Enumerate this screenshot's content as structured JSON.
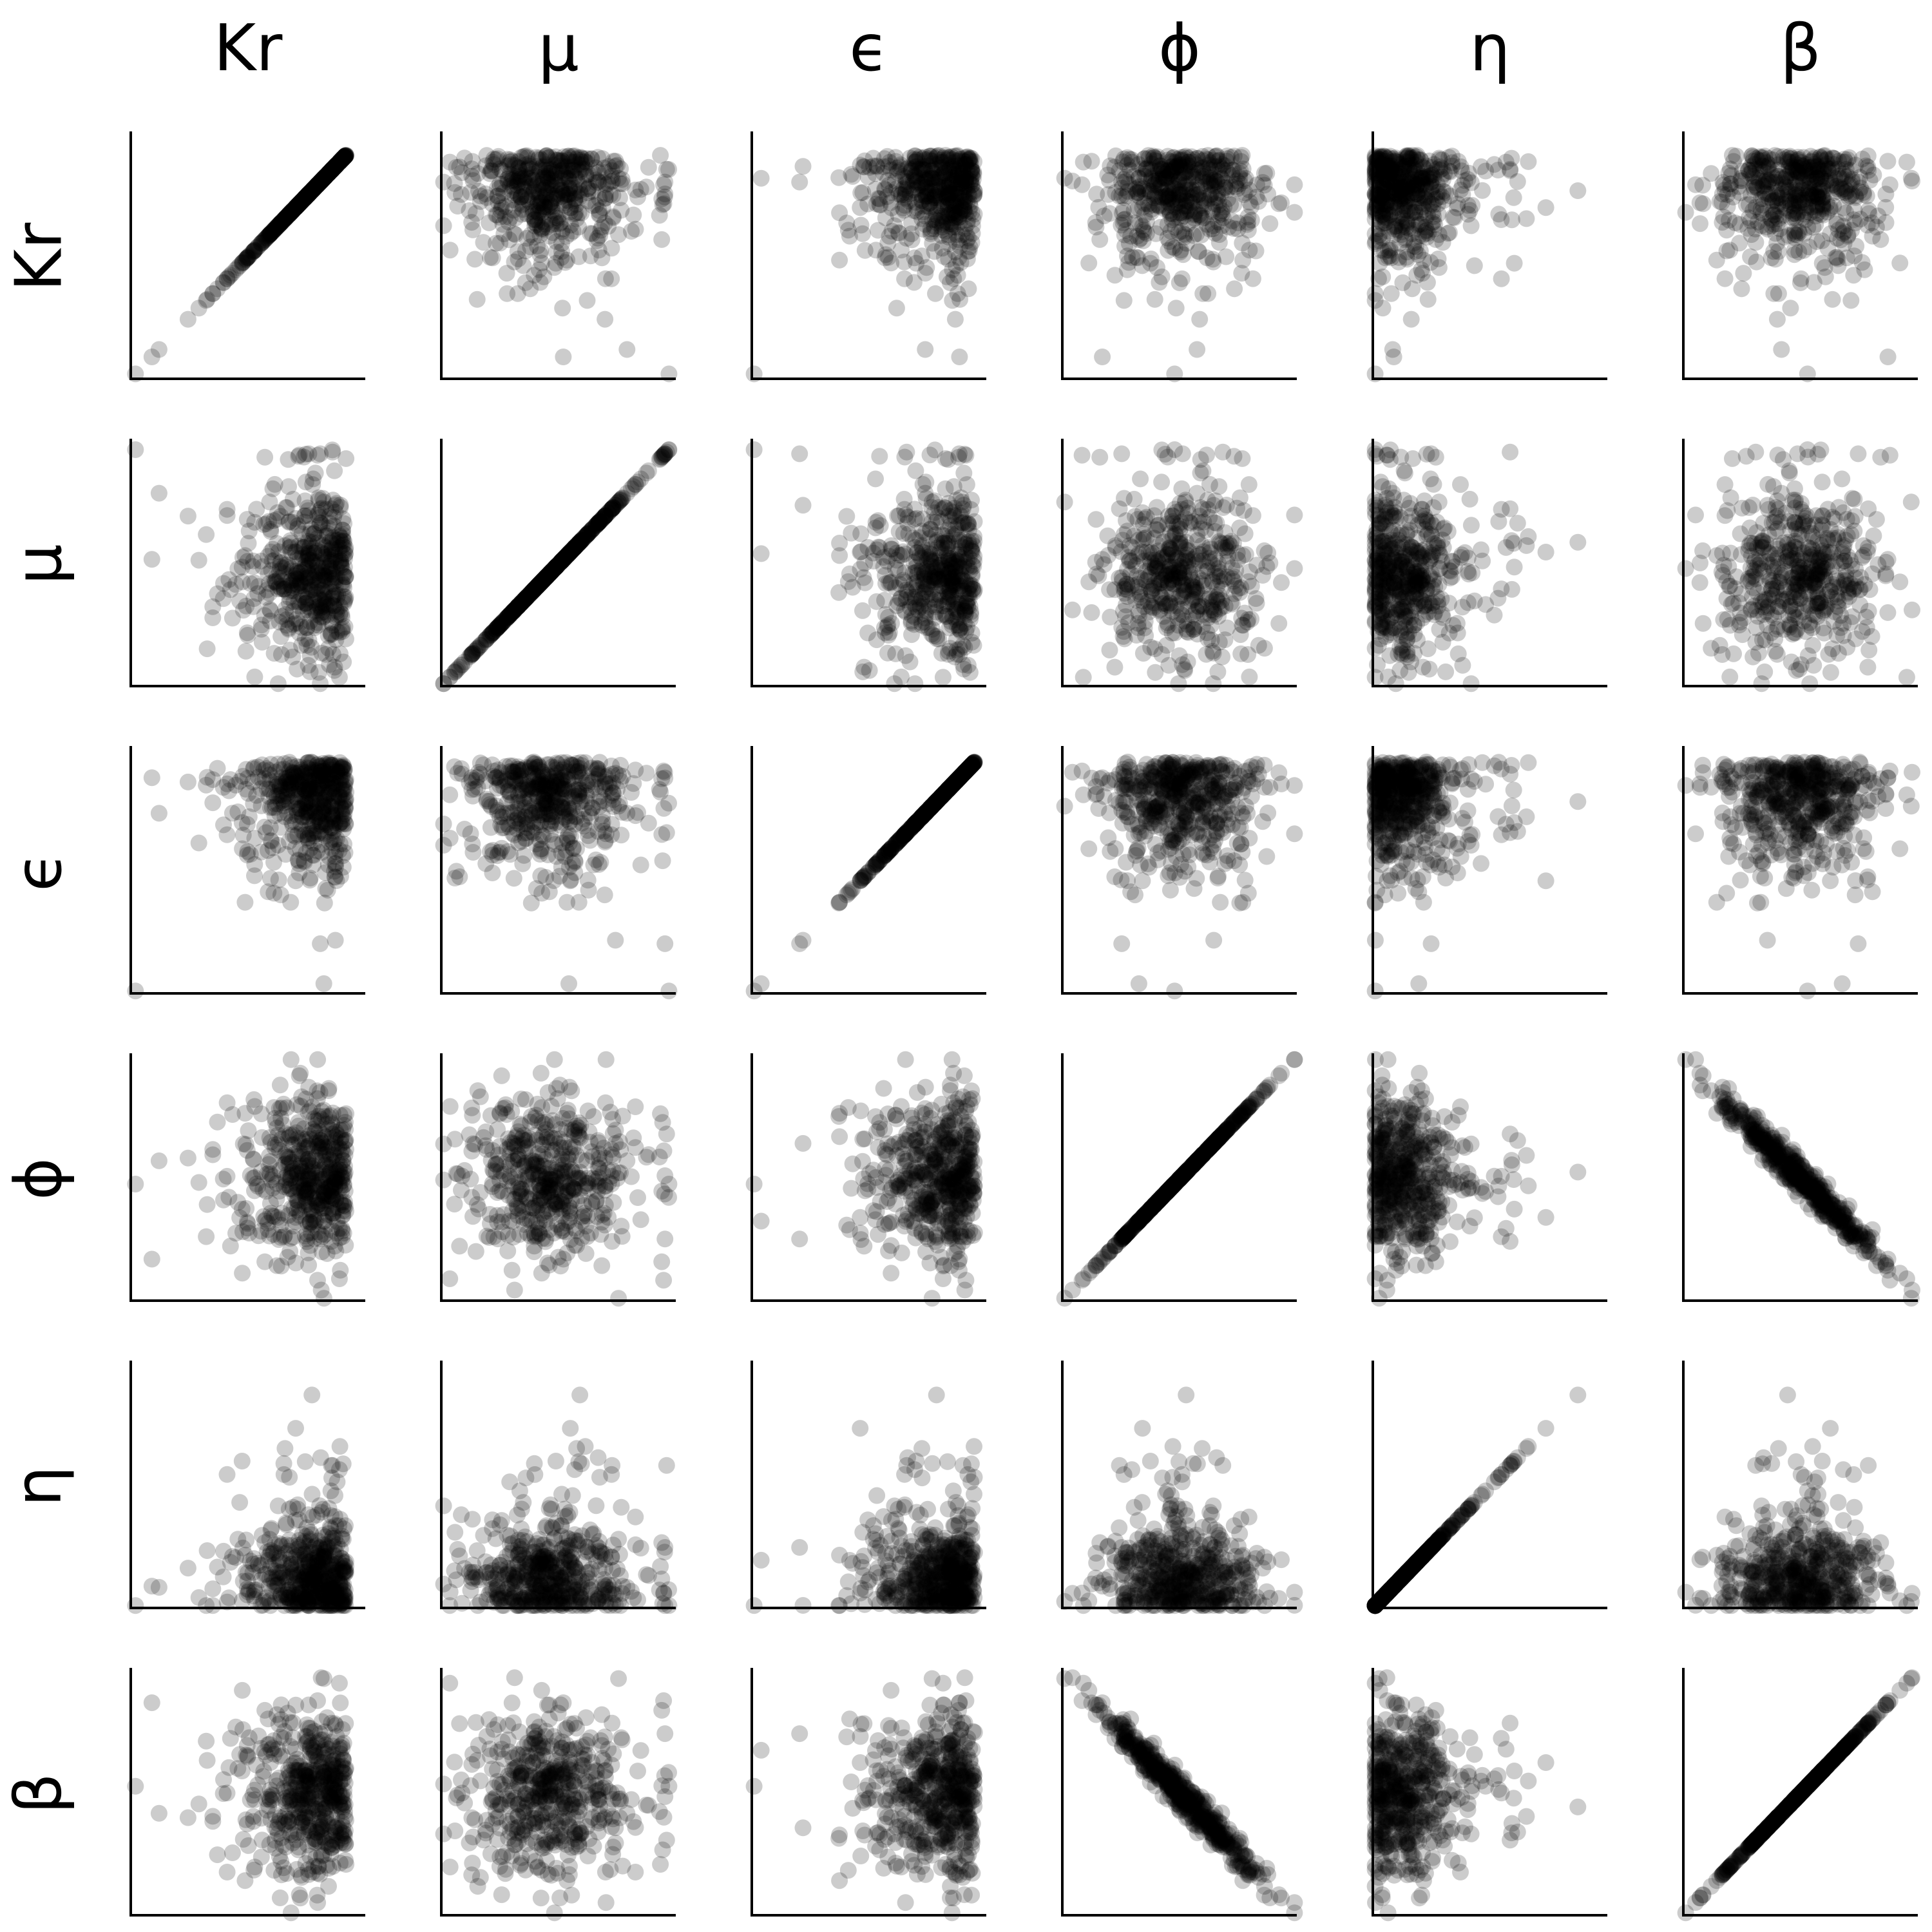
{
  "chart_data": {
    "type": "scatter",
    "subtype": "pair-plot matrix",
    "variables": [
      "Kr",
      "μ",
      "ϵ",
      "ϕ",
      "η",
      "β"
    ],
    "grid": false,
    "axis_ticks": false,
    "point_color": "#000000",
    "point_opacity": 0.2,
    "sample_size": 500,
    "panel_relationships": {
      "diagonal": "identity (x = y)",
      "ϕ_vs_β": "strong negative correlation",
      "other_pairs": "no visible correlation"
    },
    "marginal_shapes": {
      "Kr": "left-skewed, one low outlier",
      "μ": "roughly normal with a cluster at the upper end",
      "ϵ": "left-skewed, one low outlier",
      "ϕ": "roughly normal",
      "η": "right-skewed, concentrated near the minimum",
      "β": "roughly normal"
    }
  },
  "colors": {
    "points": "#000000",
    "axes": "#000000",
    "background": "#ffffff"
  }
}
